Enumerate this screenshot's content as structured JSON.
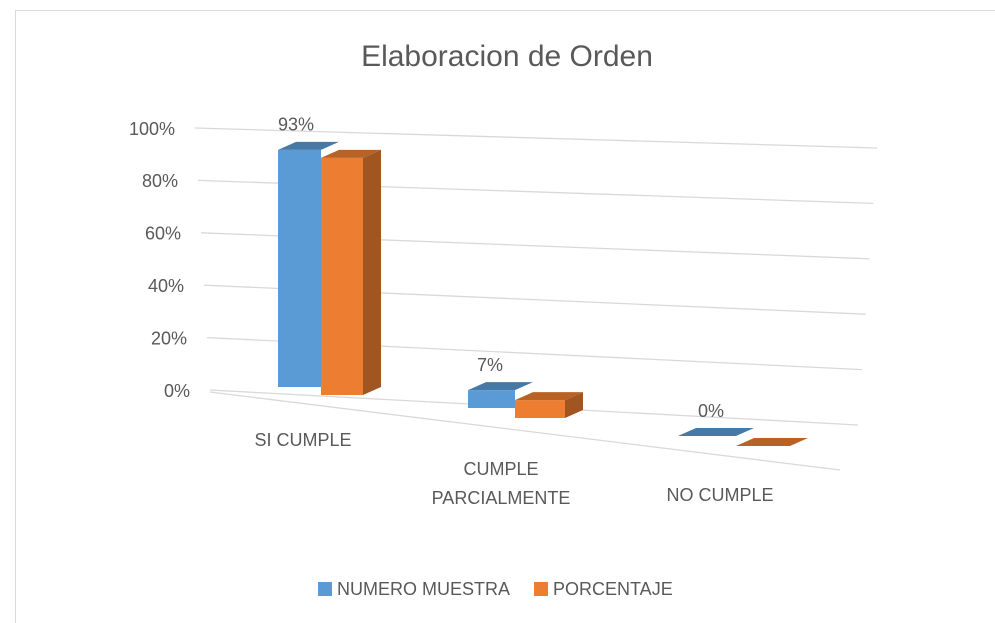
{
  "chart_data": {
    "type": "bar3d",
    "title": "Elaboracion de Orden",
    "categories": [
      "SI CUMPLE",
      "CUMPLE PARCIALMENTE",
      "NO CUMPLE"
    ],
    "series": [
      {
        "name": "NUMERO MUESTRA",
        "color": "#5b9bd5",
        "values": [
          93,
          7,
          0
        ],
        "value_labels": [
          "93%",
          "7%",
          "0%"
        ]
      },
      {
        "name": "PORCENTAJE",
        "color": "#ed7d31",
        "values": [
          93,
          7,
          0
        ]
      }
    ],
    "ylim": [
      0,
      100
    ],
    "yticks": [
      {
        "value": 0,
        "label": "0%"
      },
      {
        "value": 20,
        "label": "20%"
      },
      {
        "value": 40,
        "label": "40%"
      },
      {
        "value": 60,
        "label": "60%"
      },
      {
        "value": 80,
        "label": "80%"
      },
      {
        "value": 100,
        "label": "100%"
      }
    ],
    "grid": true,
    "legend": "bottom"
  }
}
